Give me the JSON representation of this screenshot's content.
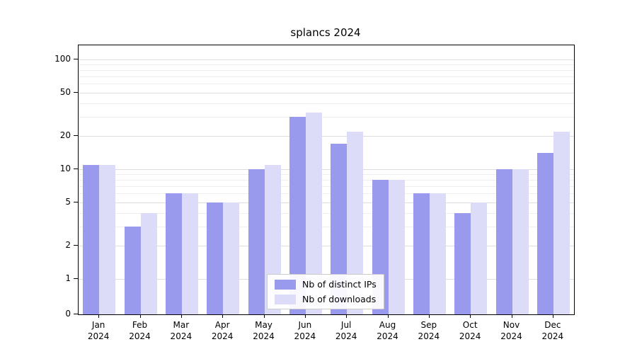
{
  "chart_data": {
    "type": "bar",
    "title": "splancs 2024",
    "categories": [
      "Jan 2024",
      "Feb 2024",
      "Mar 2024",
      "Apr 2024",
      "May 2024",
      "Jun 2024",
      "Jul 2024",
      "Aug 2024",
      "Sep 2024",
      "Oct 2024",
      "Nov 2024",
      "Dec 2024"
    ],
    "series": [
      {
        "name": "Nb of distinct IPs",
        "color": "#9999ee",
        "values": [
          11,
          3,
          6,
          5,
          10,
          30,
          17,
          8,
          6,
          4,
          10,
          14
        ]
      },
      {
        "name": "Nb of downloads",
        "color": "#dcdcf8",
        "values": [
          11,
          4,
          6,
          5,
          11,
          33,
          22,
          8,
          6,
          5,
          10,
          22
        ]
      }
    ],
    "yscale": "log-with-zero",
    "yticks": [
      0,
      1,
      2,
      5,
      10,
      20,
      50,
      100
    ],
    "ylim": [
      0,
      100
    ],
    "grid": "horizontal",
    "legend_position": "bottom-center-inside"
  }
}
